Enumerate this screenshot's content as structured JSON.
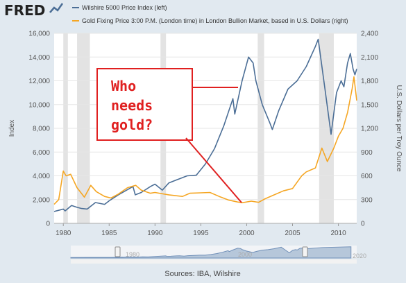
{
  "header": {
    "logo_text": "FRED",
    "legend": [
      {
        "label": "Wilshire 5000 Price Index (left)",
        "color": "#4b6e96"
      },
      {
        "label": "Gold Fixing Price 3:00 P.M. (London time) in London Bullion Market, based in U.S. Dollars (right)",
        "color": "#f5a623"
      }
    ]
  },
  "annotation": {
    "lines": [
      "Who",
      "needs",
      "gold?"
    ],
    "color": "#e02020"
  },
  "source_text": "Sources: IBA, Wilshire",
  "navigator": {
    "start_label": "1980",
    "mid_label": "2000",
    "end_label": "2020"
  },
  "chart_data": {
    "type": "line",
    "xlim": [
      1979.0,
      2012.0
    ],
    "x_ticks": [
      "1980",
      "1985",
      "1990",
      "1995",
      "2000",
      "2005",
      "2010"
    ],
    "ylabel_left": "Index",
    "ylabel_right": "U.S. Dollars per Troy Ounce",
    "ylim_left": [
      0,
      16000
    ],
    "ylim_right": [
      0,
      2400
    ],
    "y_ticks_left": [
      "0",
      "2,000",
      "4,000",
      "6,000",
      "8,000",
      "10,000",
      "12,000",
      "14,000",
      "16,000"
    ],
    "y_ticks_right": [
      "0",
      "300",
      "600",
      "900",
      "1,200",
      "1,500",
      "1,800",
      "2,100",
      "2,400"
    ],
    "recessions": [
      [
        1980.0,
        1980.5
      ],
      [
        1981.5,
        1982.9
      ],
      [
        1990.6,
        1991.2
      ],
      [
        2001.2,
        2001.9
      ],
      [
        2007.9,
        2009.5
      ]
    ],
    "series": [
      {
        "name": "Wilshire 5000 Price Index (left)",
        "axis": "left",
        "color": "#4b6e96",
        "x": [
          1979.0,
          1979.5,
          1980.0,
          1980.2,
          1980.9,
          1981.5,
          1982.0,
          1982.6,
          1983.5,
          1984.5,
          1985.0,
          1986.0,
          1987.6,
          1987.85,
          1988.5,
          1989.5,
          1990.0,
          1990.8,
          1991.5,
          1992.5,
          1993.5,
          1994.5,
          1995.5,
          1996.5,
          1997.5,
          1998.5,
          1998.7,
          1999.5,
          2000.2,
          2000.7,
          2001.0,
          2001.7,
          2002.5,
          2002.8,
          2003.5,
          2004.5,
          2005.5,
          2006.5,
          2007.5,
          2007.8,
          2008.5,
          2009.2,
          2009.8,
          2010.3,
          2010.6,
          2011.0,
          2011.3,
          2011.6,
          2011.8,
          2012.0
        ],
        "y": [
          1000,
          1100,
          1200,
          1050,
          1500,
          1350,
          1250,
          1200,
          1750,
          1600,
          1900,
          2400,
          3100,
          2400,
          2600,
          3100,
          3300,
          2800,
          3400,
          3700,
          4000,
          4050,
          5000,
          6300,
          8200,
          10500,
          9200,
          12000,
          14000,
          13500,
          12000,
          10000,
          8500,
          7900,
          9500,
          11300,
          12000,
          13200,
          14900,
          15500,
          11500,
          7500,
          11000,
          12000,
          11500,
          13500,
          14300,
          13000,
          12500,
          13000
        ]
      },
      {
        "name": "Gold Fixing Price 3:00 P.M. (London time) in London Bullion Market, based in U.S. Dollars (right)",
        "axis": "right",
        "color": "#f5a623",
        "x": [
          1979.0,
          1979.5,
          1980.0,
          1980.3,
          1980.8,
          1981.5,
          1982.3,
          1983.0,
          1983.6,
          1984.5,
          1985.2,
          1986.0,
          1987.0,
          1987.9,
          1988.5,
          1989.5,
          1990.0,
          1991.5,
          1993.0,
          1993.8,
          1995.0,
          1996.0,
          1997.0,
          1998.0,
          1999.0,
          1999.5,
          2000.5,
          2001.3,
          2002.0,
          2003.0,
          2004.0,
          2005.0,
          2006.0,
          2006.5,
          2007.5,
          2008.2,
          2008.8,
          2009.5,
          2010.0,
          2010.5,
          2011.0,
          2011.5,
          2011.7,
          2012.0
        ],
        "y": [
          240,
          300,
          660,
          600,
          620,
          450,
          330,
          480,
          400,
          340,
          320,
          370,
          450,
          480,
          420,
          380,
          390,
          360,
          340,
          380,
          385,
          390,
          340,
          295,
          270,
          260,
          280,
          265,
          310,
          360,
          410,
          440,
          600,
          650,
          700,
          950,
          780,
          950,
          1100,
          1200,
          1400,
          1700,
          1850,
          1550
        ]
      }
    ]
  }
}
